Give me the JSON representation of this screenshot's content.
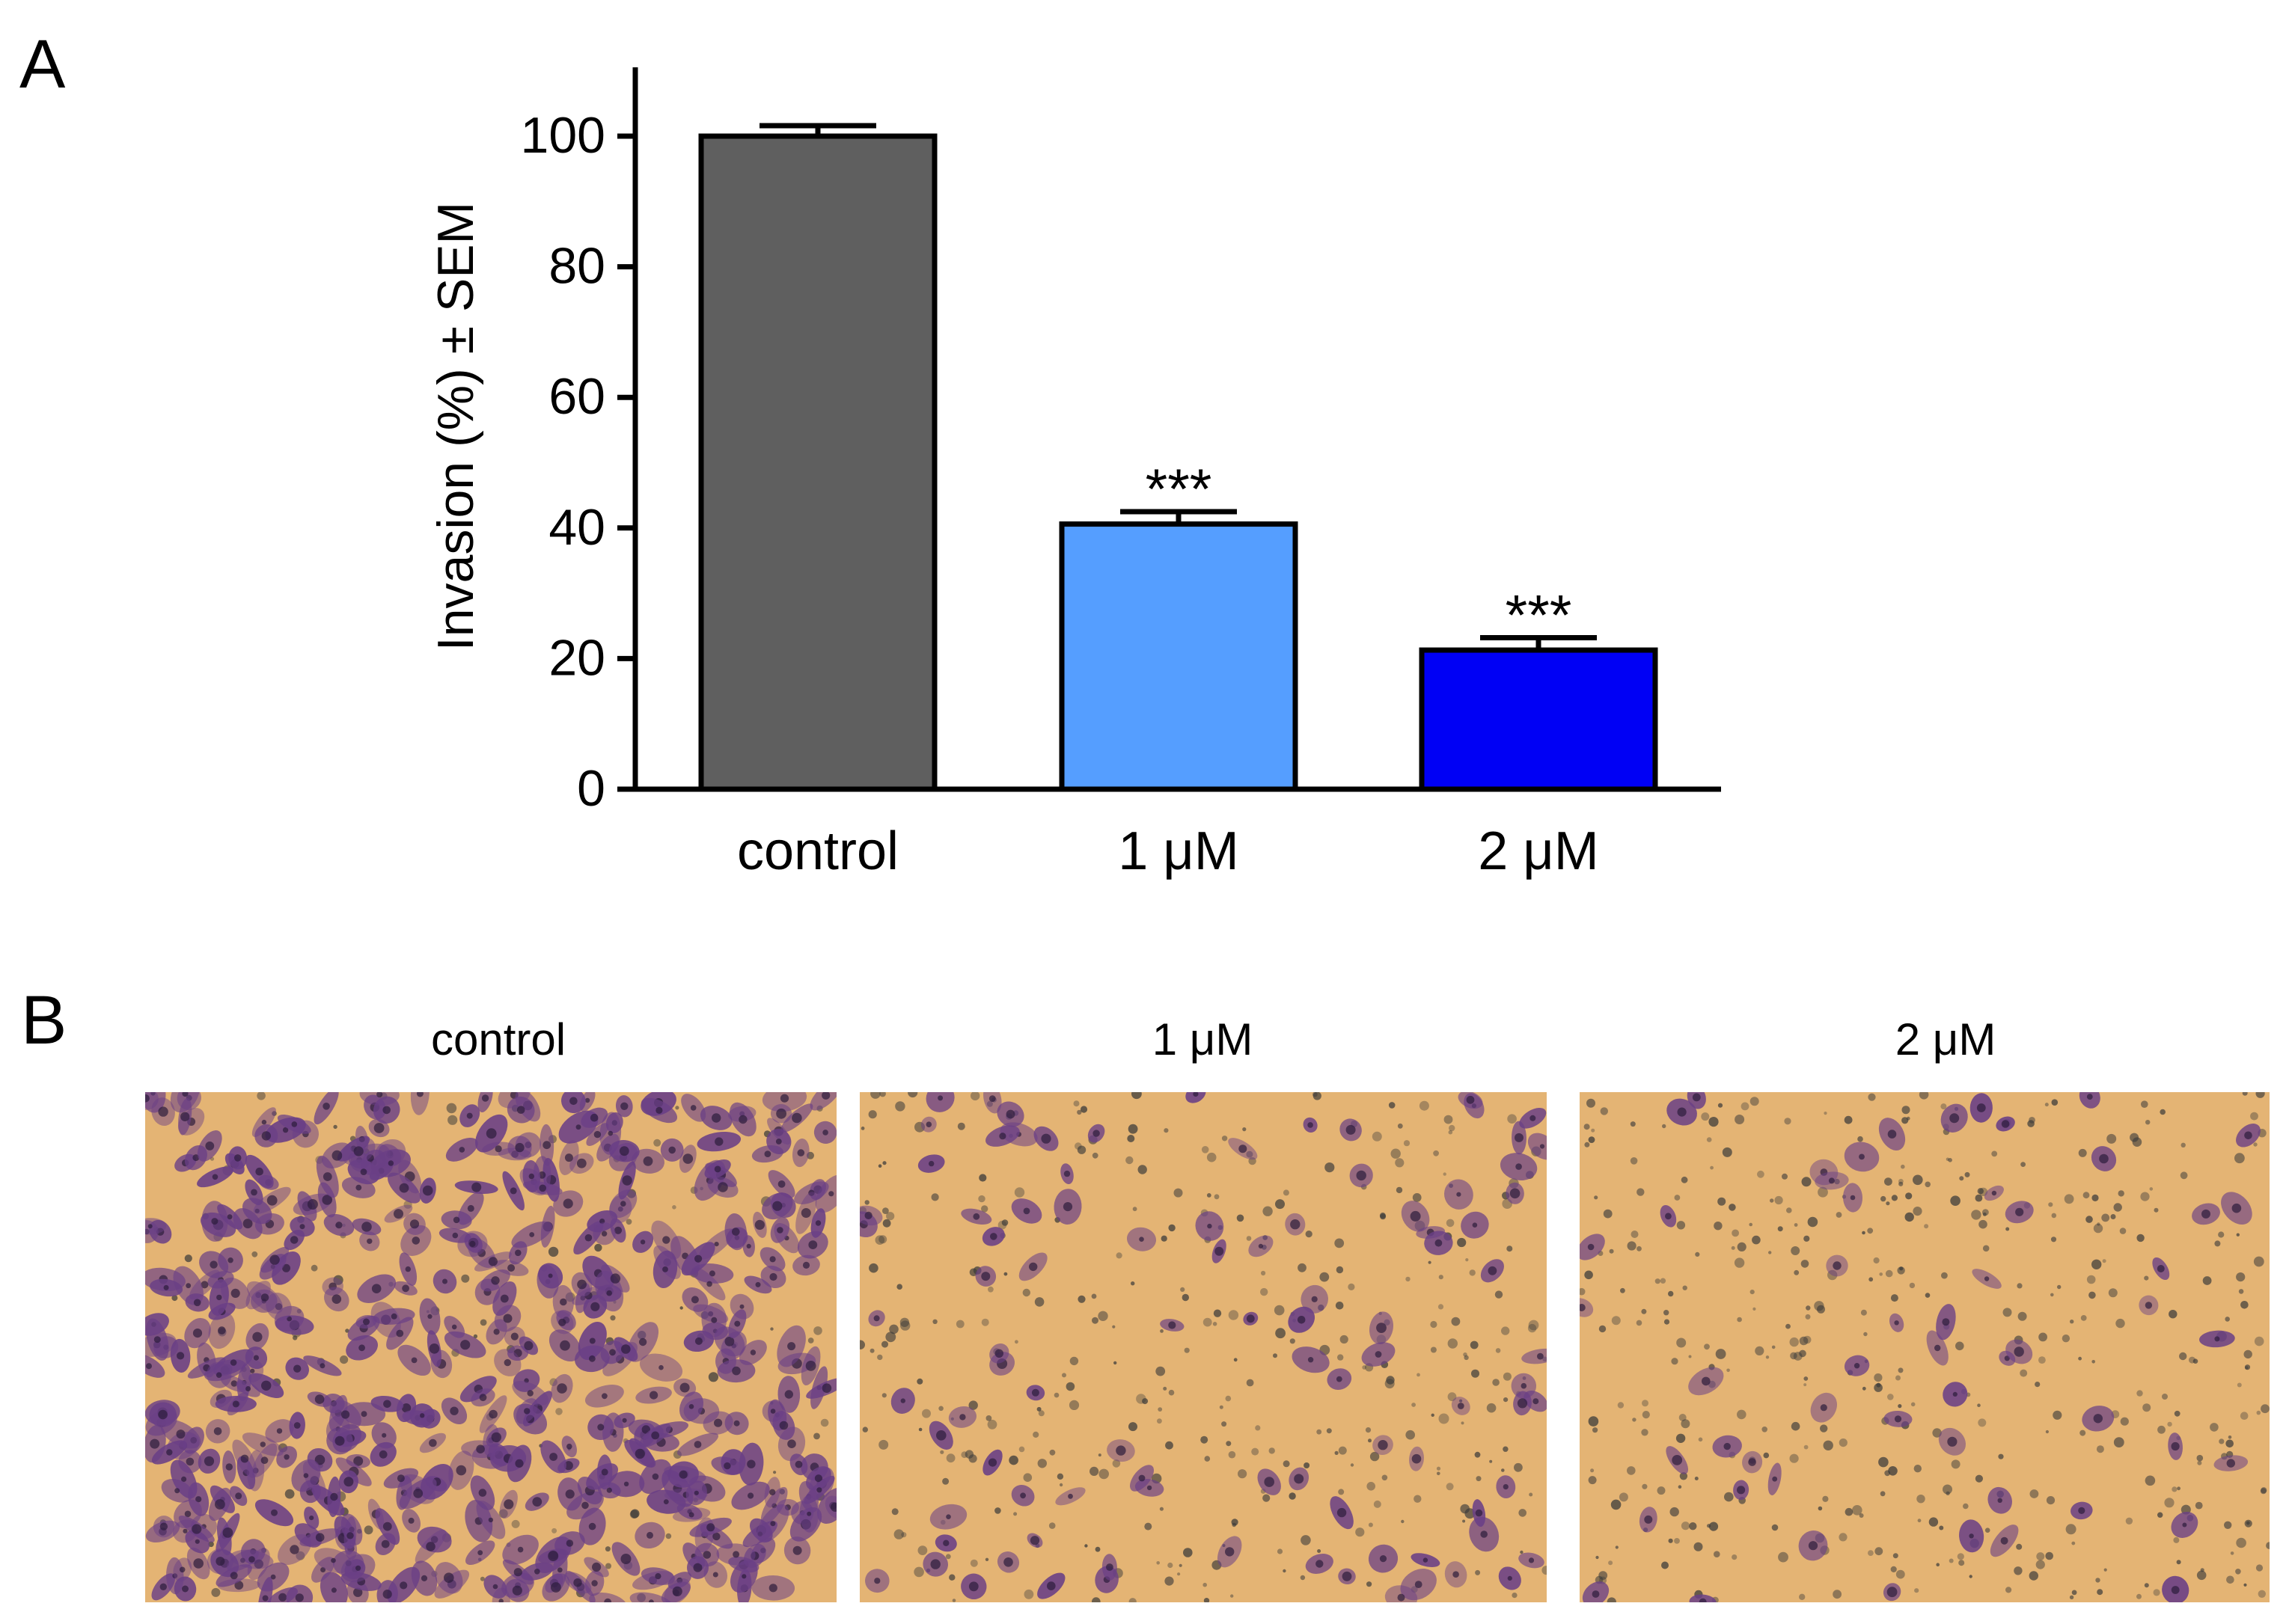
{
  "panels": {
    "a_label": "A",
    "b_label": "B"
  },
  "chart_data": {
    "type": "bar",
    "categories": [
      "control",
      "1 μM",
      "2 μM"
    ],
    "values": [
      100,
      40.6,
      21.3
    ],
    "errors": [
      1.6,
      1.9,
      1.9
    ],
    "bar_colors": [
      "#5f5f5f",
      "#559eff",
      "#0000f5"
    ],
    "annotations": [
      "",
      "***",
      "***"
    ],
    "ylabel": "Invasion (%) ± SEM",
    "ylim": [
      0,
      110
    ],
    "yticks": [
      0,
      20,
      40,
      60,
      80,
      100
    ],
    "grid": false
  },
  "micrographs": {
    "labels": [
      "control",
      "1 μM",
      "2 μM"
    ],
    "background_color": "#e4b474",
    "cell_color": "#6a3f86",
    "debris_color": "#3a3a3a",
    "cell_density": [
      520,
      95,
      55
    ],
    "debris_density": [
      120,
      340,
      420
    ]
  }
}
